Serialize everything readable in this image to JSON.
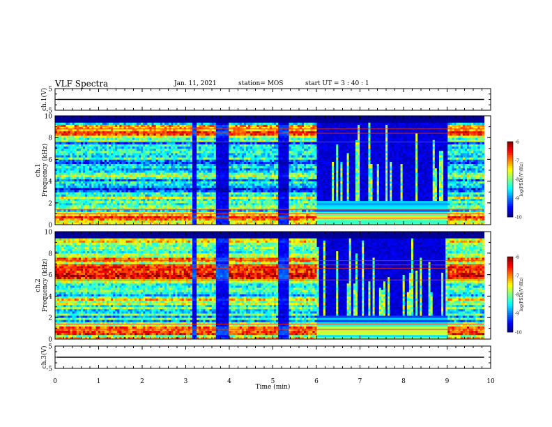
{
  "header": {
    "title": "VLF Spectra",
    "date": "Jan. 11, 2021",
    "station": "station= MOS",
    "start": "start  UT =  3 : 40 : 1"
  },
  "chart_data": [
    {
      "type": "line",
      "name": "ch1-waveform",
      "ylabel": "ch.1(V)",
      "ylim": [
        -5,
        5
      ],
      "yticks": [
        "5",
        "-5"
      ],
      "trace_level": 0,
      "x_range": [
        0,
        9.85
      ]
    },
    {
      "type": "heatmap",
      "name": "ch1-spectrogram",
      "ylabel": "ch.1\nFrequency (kHz)",
      "ylim": [
        0,
        10
      ],
      "yticks": [
        "0",
        "2",
        "4",
        "6",
        "8",
        "10"
      ],
      "data_end_min": 9.85,
      "colorbar": {
        "label": "log(PSD)(V²/Hz)",
        "range": [
          -10,
          -6
        ],
        "ticks": [
          "-6",
          "-7",
          "-8",
          "-9",
          "-10"
        ]
      },
      "quiet_intervals_min": [
        [
          3.15,
          3.25
        ],
        [
          3.7,
          4.0
        ],
        [
          5.1,
          5.35
        ]
      ],
      "active_interval_min": [
        6.0,
        9.0
      ],
      "strong_lines_kHz": [
        8.8,
        8.4,
        7.6,
        1.4,
        1.0,
        0.6
      ]
    },
    {
      "type": "heatmap",
      "name": "ch2-spectrogram",
      "ylabel": "ch.2\nFrequency (kHz)",
      "ylim": [
        0,
        10
      ],
      "yticks": [
        "0",
        "2",
        "4",
        "6",
        "8",
        "10"
      ],
      "data_end_min": 9.85,
      "colorbar": {
        "label": "log(PSD)(V²/Hz)",
        "range": [
          -10,
          -6
        ],
        "ticks": [
          "-6",
          "-7",
          "-8",
          "-9",
          "-10"
        ]
      },
      "quiet_intervals_min": [
        [
          3.15,
          3.25
        ],
        [
          3.7,
          4.0
        ],
        [
          5.1,
          5.35
        ]
      ],
      "active_interval_min": [
        6.0,
        9.0
      ],
      "strong_lines_kHz": [
        7.3,
        6.9,
        6.6,
        5.5,
        1.4,
        0.9
      ]
    },
    {
      "type": "line",
      "name": "ch3-waveform",
      "ylabel": "ch.3(V)",
      "ylim": [
        -5,
        5
      ],
      "yticks": [
        "5",
        "-5"
      ],
      "trace_level": 0,
      "x_range": [
        0,
        9.85
      ]
    }
  ],
  "xaxis": {
    "label": "Time (min)",
    "range": [
      0,
      10
    ],
    "ticks": [
      "0",
      "1",
      "2",
      "3",
      "4",
      "5",
      "6",
      "7",
      "8",
      "9",
      "10"
    ]
  },
  "colors": {
    "jet": [
      "#00008f",
      "#0000ff",
      "#00ffff",
      "#ffff00",
      "#ff0000",
      "#800000"
    ]
  }
}
